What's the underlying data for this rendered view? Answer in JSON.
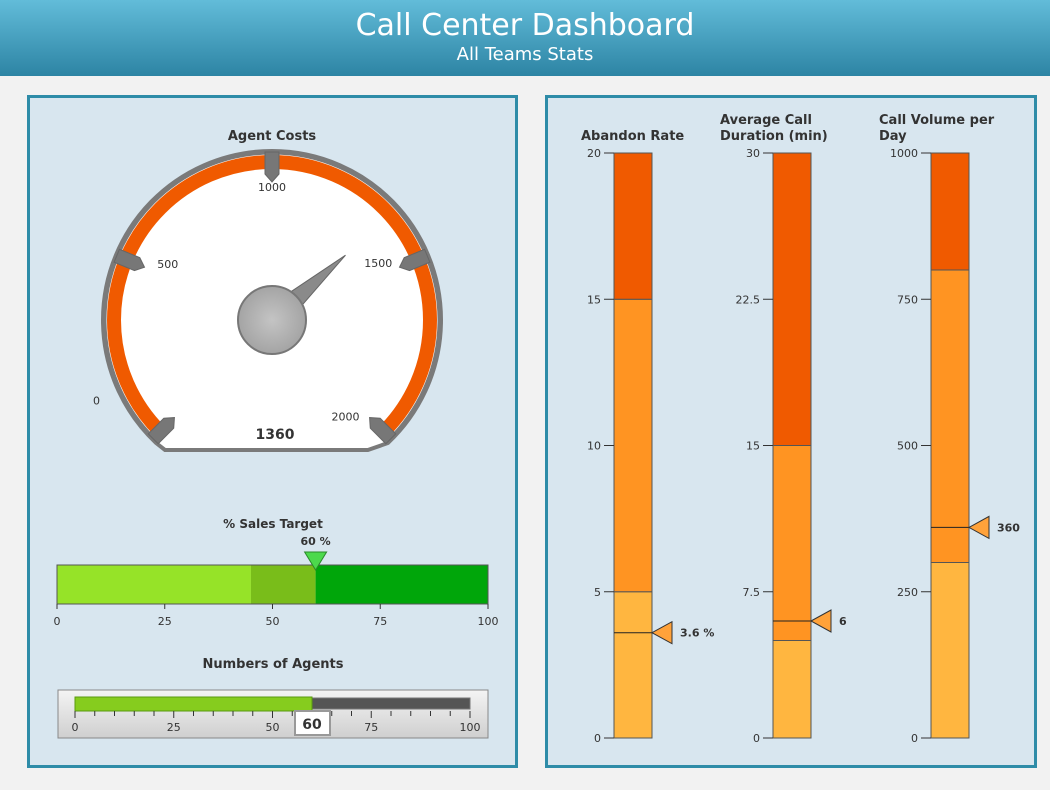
{
  "header": {
    "title": "Call Center Dashboard",
    "subtitle": "All Teams Stats"
  },
  "agent_costs": {
    "title": "Agent Costs",
    "min": 0,
    "max": 2000,
    "ticks": [
      0,
      500,
      1000,
      1500,
      2000
    ],
    "value": 1360,
    "value_label": "1360",
    "colors": {
      "band": "#f05a00",
      "rim": "#7a7a7a"
    }
  },
  "sales_target": {
    "title": "% Sales Target",
    "value": 60,
    "value_label": "60 %",
    "ticks": [
      0,
      25,
      50,
      75,
      100
    ],
    "bands": [
      {
        "from": 0,
        "to": 45,
        "color": "#96e328"
      },
      {
        "from": 45,
        "to": 60,
        "color": "#79bd1a"
      },
      {
        "from": 60,
        "to": 100,
        "color": "#00a60a"
      }
    ]
  },
  "agents": {
    "title": "Numbers of Agents",
    "value": 60,
    "value_label": "60",
    "ticks": [
      0,
      25,
      50,
      75,
      100
    ],
    "fill_color": "#86cc1e"
  },
  "linear_gauges": [
    {
      "title_lines": [
        "Abandon Rate"
      ],
      "min": 0,
      "max": 20,
      "ticks": [
        "0",
        "5",
        "10",
        "15",
        "20"
      ],
      "tick_values": [
        0,
        5,
        10,
        15,
        20
      ],
      "value": 3.6,
      "value_label": "3.6 %",
      "bands": [
        {
          "from": 0,
          "to": 5,
          "color": "#ffb640"
        },
        {
          "from": 5,
          "to": 15,
          "color": "#ff9422"
        },
        {
          "from": 15,
          "to": 20,
          "color": "#f05a00"
        }
      ]
    },
    {
      "title_lines": [
        "Average Call",
        "Duration (min)"
      ],
      "min": 0,
      "max": 30,
      "ticks": [
        "0",
        "7.5",
        "15",
        "22.5",
        "30"
      ],
      "tick_values": [
        0,
        7.5,
        15,
        22.5,
        30
      ],
      "value": 6,
      "value_label": "6",
      "bands": [
        {
          "from": 0,
          "to": 5,
          "color": "#ffb640"
        },
        {
          "from": 5,
          "to": 15,
          "color": "#ff9422"
        },
        {
          "from": 15,
          "to": 30,
          "color": "#f05a00"
        }
      ]
    },
    {
      "title_lines": [
        "Call Volume per",
        "Day"
      ],
      "min": 0,
      "max": 1000,
      "ticks": [
        "0",
        "250",
        "500",
        "750",
        "1000"
      ],
      "tick_values": [
        0,
        250,
        500,
        750,
        1000
      ],
      "value": 360,
      "value_label": "360",
      "bands": [
        {
          "from": 0,
          "to": 300,
          "color": "#ffb640"
        },
        {
          "from": 300,
          "to": 800,
          "color": "#ff9422"
        },
        {
          "from": 800,
          "to": 1000,
          "color": "#f05a00"
        }
      ]
    }
  ]
}
